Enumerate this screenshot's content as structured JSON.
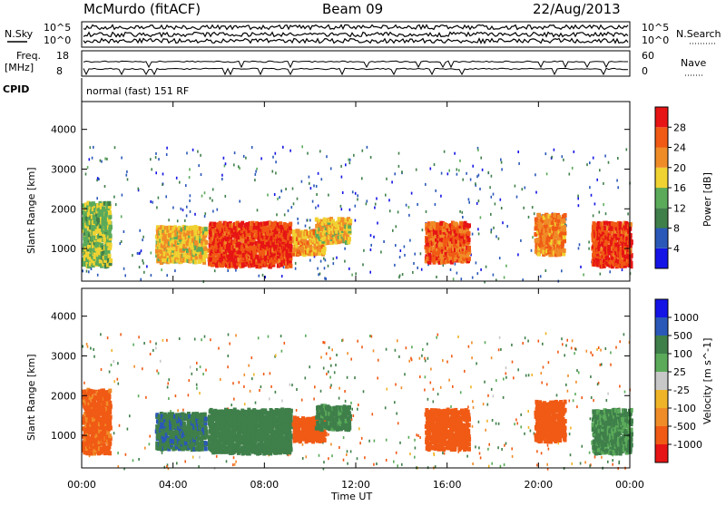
{
  "header": {
    "station": "McMurdo (fitACF)",
    "beam": "Beam 09",
    "date": "22/Aug/2013"
  },
  "side_labels": {
    "nsky": "N.Sky",
    "nsky_hi": "10^5",
    "nsky_lo": "10^0",
    "nsearch": "N.Search",
    "nsearch_hi": "10^5",
    "nsearch_lo": "10^0",
    "freq_line1": "Freq.",
    "freq_line2": "[MHz]",
    "freq_hi": "18",
    "freq_lo": "8",
    "nave": "Nave",
    "nave_hi": "60",
    "nave_lo": "0",
    "cpid_label": "CPID",
    "cpid_value": "normal (fast) 151 RF"
  },
  "colors": {
    "power_scale": [
      "#1414e6",
      "#2a58b8",
      "#3f7f4a",
      "#5aaa5a",
      "#f0d232",
      "#f08c28",
      "#f05a14",
      "#e61414"
    ],
    "velocity_scale": [
      "#e61414",
      "#f05a14",
      "#f08c28",
      "#f0b428",
      "#c8c8c8",
      "#5aaa5a",
      "#3f7f4a",
      "#2a58b8",
      "#1414e6"
    ]
  },
  "chart_data": [
    {
      "type": "heatmap",
      "title": "",
      "xlabel": "Time UT",
      "ylabel": "Slant Range [km]",
      "xticks": [
        "00:00",
        "04:00",
        "08:00",
        "12:00",
        "16:00",
        "20:00",
        "00:00"
      ],
      "yticks": [
        "1000",
        "2000",
        "3000",
        "4000"
      ],
      "xlim_hours": [
        0,
        24
      ],
      "ylim_km": [
        180,
        4700
      ],
      "colorbar": {
        "label": "Power [dB]",
        "ticks": [
          "4",
          "8",
          "12",
          "16",
          "20",
          "24",
          "28"
        ],
        "range": [
          0,
          30
        ]
      },
      "echo_regions": [
        {
          "t0": 0.0,
          "t1": 1.2,
          "r0": 600,
          "r1": 2200,
          "power": 14
        },
        {
          "t0": 3.2,
          "t1": 5.4,
          "r0": 700,
          "r1": 1600,
          "power": 18
        },
        {
          "t0": 5.5,
          "t1": 9.1,
          "r0": 600,
          "r1": 1700,
          "power": 26
        },
        {
          "t0": 9.2,
          "t1": 10.6,
          "r0": 900,
          "r1": 1500,
          "power": 20
        },
        {
          "t0": 10.2,
          "t1": 11.7,
          "r0": 1200,
          "r1": 1800,
          "power": 18
        },
        {
          "t0": 15.0,
          "t1": 16.9,
          "r0": 700,
          "r1": 1700,
          "power": 24
        },
        {
          "t0": 19.8,
          "t1": 21.1,
          "r0": 900,
          "r1": 1900,
          "power": 22
        },
        {
          "t0": 22.3,
          "t1": 24.0,
          "r0": 600,
          "r1": 1700,
          "power": 26
        }
      ]
    },
    {
      "type": "heatmap",
      "title": "",
      "xlabel": "Time UT",
      "ylabel": "Slant Range [km]",
      "xticks": [
        "00:00",
        "04:00",
        "08:00",
        "12:00",
        "16:00",
        "20:00",
        "00:00"
      ],
      "yticks": [
        "1000",
        "2000",
        "3000",
        "4000"
      ],
      "xlim_hours": [
        0,
        24
      ],
      "ylim_km": [
        180,
        4700
      ],
      "colorbar": {
        "label": "Velocity [m s^-1]",
        "ticks": [
          "1000",
          "500",
          "100",
          "25",
          "-25",
          "-100",
          "-500",
          "-1000"
        ],
        "range": [
          -1000,
          1000
        ]
      },
      "echo_regions": [
        {
          "t0": 0.0,
          "t1": 1.2,
          "r0": 600,
          "r1": 2200,
          "velocity": -150
        },
        {
          "t0": 3.2,
          "t1": 5.4,
          "r0": 700,
          "r1": 1600,
          "velocity": 400
        },
        {
          "t0": 5.5,
          "t1": 9.1,
          "r0": 600,
          "r1": 1700,
          "velocity": 250
        },
        {
          "t0": 9.2,
          "t1": 10.6,
          "r0": 900,
          "r1": 1500,
          "velocity": -200
        },
        {
          "t0": 10.2,
          "t1": 11.7,
          "r0": 1200,
          "r1": 1800,
          "velocity": 150
        },
        {
          "t0": 15.0,
          "t1": 16.9,
          "r0": 700,
          "r1": 1700,
          "velocity": -250
        },
        {
          "t0": 19.8,
          "t1": 21.1,
          "r0": 900,
          "r1": 1900,
          "velocity": -200
        },
        {
          "t0": 22.3,
          "t1": 24.0,
          "r0": 600,
          "r1": 1700,
          "velocity": 120
        }
      ]
    }
  ]
}
